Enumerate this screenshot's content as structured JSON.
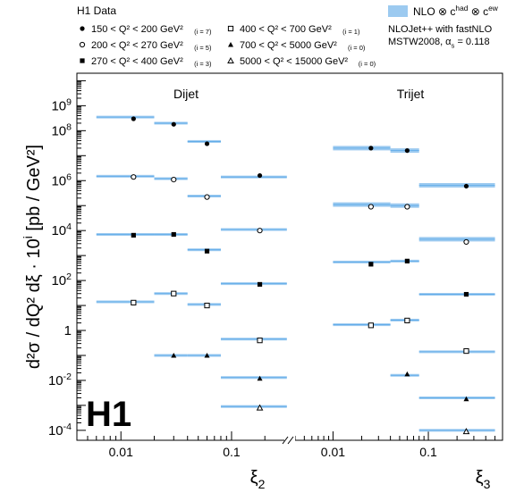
{
  "chart_data": {
    "type": "scatter",
    "logo": "H1",
    "legend": {
      "data_title": "H1 Data",
      "entries": [
        {
          "marker": "filled-circle",
          "q2": [
            150,
            200
          ],
          "i": 7,
          "text": "150 < Q² < 200 GeV²",
          "tag": "(i = 7)"
        },
        {
          "marker": "open-circle",
          "q2": [
            200,
            270
          ],
          "i": 5,
          "text": "200 < Q² < 270 GeV²",
          "tag": "(i = 5)"
        },
        {
          "marker": "filled-square",
          "q2": [
            270,
            400
          ],
          "i": 3,
          "text": "270 < Q² < 400 GeV²",
          "tag": "(i = 3)"
        },
        {
          "marker": "open-square",
          "q2": [
            400,
            700
          ],
          "i": 1,
          "text": "400 < Q² < 700 GeV²",
          "tag": "(i = 1)"
        },
        {
          "marker": "filled-triangle",
          "q2": [
            700,
            5000
          ],
          "i": 0,
          "text": "700 < Q² < 5000 GeV²",
          "tag": "(i = 0)"
        },
        {
          "marker": "open-triangle",
          "q2": [
            5000,
            15000
          ],
          "i": 0,
          "text": "5000 < Q² < 15000 GeV²",
          "tag": "(i = 0)"
        }
      ],
      "theory_label": "NLO ⊗ c^had ⊗ c^ew",
      "theory_line2": "NLOJet++ with fastNLO",
      "theory_line3": "MSTW2008, α_s = 0.118"
    },
    "ylabel": "d²σ / dQ² dξ · 10^i [pb / GeV²]",
    "y_scale": "log",
    "ylim": [
      4e-05,
      20000000000
    ],
    "y_ticks": [
      {
        "v": 1000000000.0,
        "label": "10^9"
      },
      {
        "v": 100000000.0,
        "label": "10^8"
      },
      {
        "v": 1000000.0,
        "label": "10^6"
      },
      {
        "v": 10000.0,
        "label": "10^4"
      },
      {
        "v": 100.0,
        "label": "10^2"
      },
      {
        "v": 1,
        "label": "1"
      },
      {
        "v": 0.01,
        "label": "10^-2"
      },
      {
        "v": 0.0001,
        "label": "10^-4"
      }
    ],
    "panels": [
      {
        "name": "Dijet",
        "xlabel": "ξ_2",
        "x_scale": "log",
        "xlim": [
          0.004,
          0.3
        ],
        "x_ticks": [
          {
            "v": 0.01,
            "label": "0.01"
          },
          {
            "v": 0.1,
            "label": "0.1"
          }
        ],
        "bins": [
          [
            0.006,
            0.02
          ],
          [
            0.02,
            0.04
          ],
          [
            0.04,
            0.08
          ],
          [
            0.08,
            0.316
          ]
        ],
        "series": [
          {
            "marker": "filled-circle",
            "points": [
              [
                0.013,
                300000000.0
              ],
              [
                0.03,
                180000000.0
              ],
              [
                0.06,
                30000000.0
              ],
              [
                0.18,
                1600000.0
              ]
            ],
            "nlo": [
              350000000.0,
              200000000.0,
              37000000.0,
              1400000.0
            ]
          },
          {
            "marker": "open-circle",
            "points": [
              [
                0.013,
                1400000.0
              ],
              [
                0.03,
                1100000.0
              ],
              [
                0.06,
                220000.0
              ],
              [
                0.18,
                10000.0
              ]
            ],
            "nlo": [
              1500000.0,
              1200000.0,
              240000.0,
              11000.0
            ]
          },
          {
            "marker": "filled-square",
            "points": [
              [
                0.013,
                6500.0
              ],
              [
                0.03,
                7000.0
              ],
              [
                0.06,
                1500.0
              ],
              [
                0.18,
                70
              ]
            ],
            "nlo": [
              7000.0,
              7000.0,
              1700.0,
              75
            ]
          },
          {
            "marker": "open-square",
            "points": [
              [
                0.013,
                13
              ],
              [
                0.03,
                30
              ],
              [
                0.06,
                10
              ],
              [
                0.18,
                0.4
              ]
            ],
            "nlo": [
              14,
              30,
              11,
              0.45
            ]
          },
          {
            "marker": "filled-triangle",
            "points": [
              [
                0.03,
                0.1
              ],
              [
                0.06,
                0.1
              ],
              [
                0.18,
                0.012
              ]
            ],
            "nlo": [
              null,
              0.1,
              0.1,
              0.013
            ]
          },
          {
            "marker": "open-triangle",
            "points": [
              [
                0.18,
                0.0008
              ]
            ],
            "nlo": [
              null,
              null,
              null,
              0.0009
            ]
          }
        ]
      },
      {
        "name": "Trijet",
        "xlabel": "ξ_3",
        "x_scale": "log",
        "xlim": [
          0.004,
          0.6
        ],
        "x_ticks": [
          {
            "v": 0.01,
            "label": "0.01"
          },
          {
            "v": 0.1,
            "label": "0.1"
          }
        ],
        "bins": [
          [
            0.01,
            0.04
          ],
          [
            0.04,
            0.08
          ],
          [
            0.08,
            0.5
          ]
        ],
        "series": [
          {
            "marker": "filled-circle",
            "points": [
              [
                0.025,
                20000000.0
              ],
              [
                0.06,
                16000000.0
              ],
              [
                0.25,
                600000.0
              ]
            ],
            "nlo": [
              20000000.0,
              16000000.0,
              650000.0
            ]
          },
          {
            "marker": "open-circle",
            "points": [
              [
                0.025,
                90000.0
              ],
              [
                0.06,
                90000.0
              ],
              [
                0.25,
                3500.0
              ]
            ],
            "nlo": [
              110000.0,
              100000.0,
              4500.0
            ]
          },
          {
            "marker": "filled-square",
            "points": [
              [
                0.025,
                450
              ],
              [
                0.06,
                600
              ],
              [
                0.25,
                28
              ]
            ],
            "nlo": [
              550,
              600,
              28
            ]
          },
          {
            "marker": "open-square",
            "points": [
              [
                0.025,
                1.6
              ],
              [
                0.06,
                2.5
              ],
              [
                0.25,
                0.15
              ]
            ],
            "nlo": [
              1.7,
              2.6,
              0.14
            ]
          },
          {
            "marker": "filled-triangle",
            "points": [
              [
                0.06,
                0.018
              ],
              [
                0.25,
                0.0018
              ]
            ],
            "nlo": [
              null,
              0.016,
              0.002
            ]
          },
          {
            "marker": "open-triangle",
            "points": [
              [
                0.25,
                9e-05
              ]
            ],
            "nlo": [
              null,
              null,
              0.0001
            ]
          }
        ]
      }
    ],
    "colors": {
      "theory": "#9ccaf0",
      "theory_center": "#5aa8e8",
      "data": "#000000",
      "frame": "#000000"
    },
    "grid": false
  }
}
